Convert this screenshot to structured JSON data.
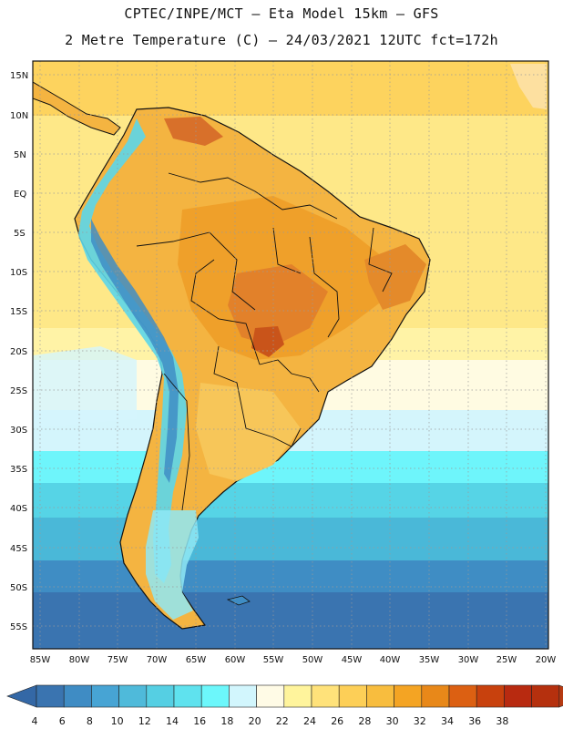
{
  "header": {
    "line1": "CPTEC/INPE/MCT –  Eta Model 15km – GFS",
    "line2": "2 Metre Temperature (C) – 24/03/2021 12UTC fct=172h"
  },
  "lat_labels": [
    "15N",
    "10N",
    "5N",
    "EQ",
    "5S",
    "10S",
    "15S",
    "20S",
    "25S",
    "30S",
    "35S",
    "40S",
    "45S",
    "50S",
    "55S"
  ],
  "lon_labels": [
    "85W",
    "80W",
    "75W",
    "70W",
    "65W",
    "60W",
    "55W",
    "50W",
    "45W",
    "40W",
    "35W",
    "30W",
    "25W",
    "20W"
  ],
  "colorbar": {
    "ticks": [
      "4",
      "6",
      "8",
      "10",
      "12",
      "14",
      "16",
      "18",
      "20",
      "22",
      "24",
      "26",
      "28",
      "30",
      "32",
      "34",
      "36",
      "38"
    ],
    "colors": [
      "#3a74b0",
      "#3f8cc4",
      "#47a4d4",
      "#4fbada",
      "#55cfe3",
      "#5fe2ee",
      "#6cf7fb",
      "#d2f6fd",
      "#fffbe6",
      "#fff49c",
      "#ffe27a",
      "#fdcf57",
      "#f8bd3e",
      "#f4a423",
      "#e88819",
      "#dc6012",
      "#c8410d",
      "#b82a10",
      "#b5300e"
    ],
    "low_color": "#3468a6",
    "high_color": "#b63a12"
  },
  "legend_colors": {
    "ocean_warm": "#fee888",
    "land_warm": "#f5b642",
    "ocean_cool": "#5ee0ee",
    "ocean_cold": "#3a78b6"
  }
}
